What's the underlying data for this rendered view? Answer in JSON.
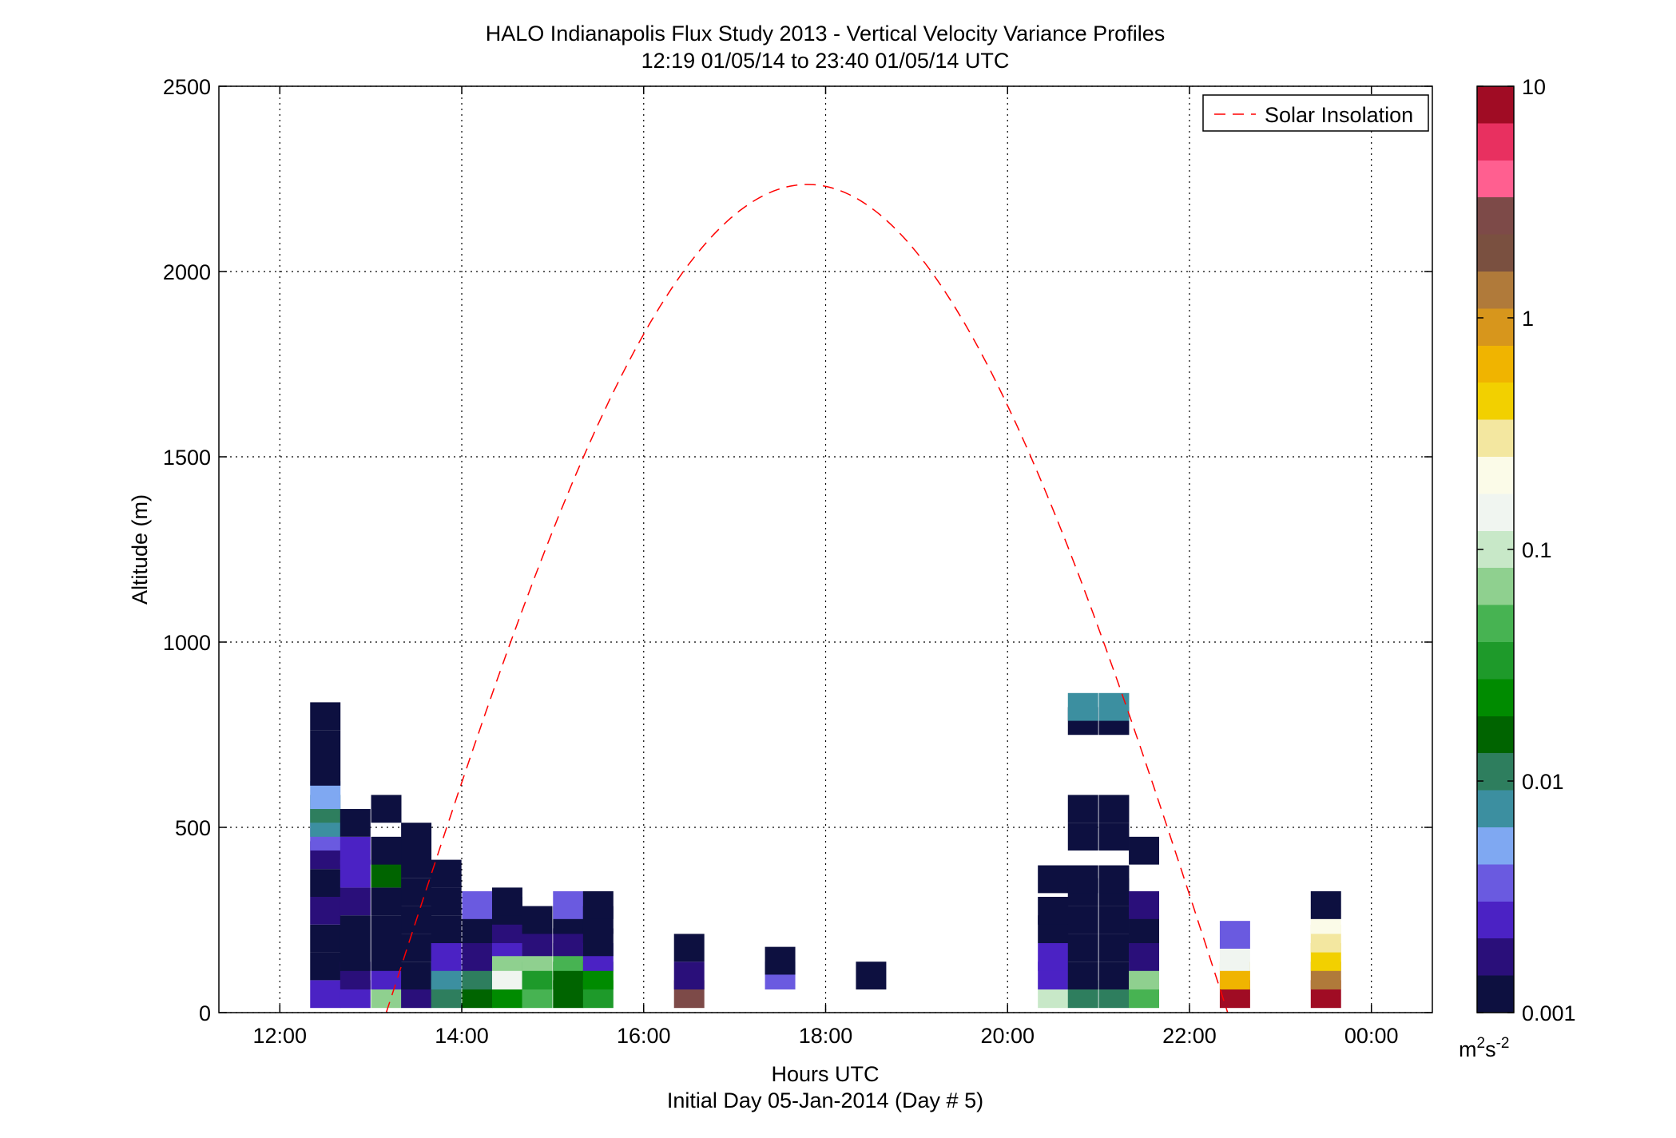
{
  "chart_data": {
    "type": "heatmap",
    "title": "HALO Indianapolis Flux Study 2013 - Vertical Velocity Variance Profiles",
    "subtitle": "12:19 01/05/14 to 23:40 01/05/14  UTC",
    "xlabel": "Hours UTC",
    "xlabel2": "Initial Day 05-Jan-2014 (Day # 5)",
    "ylabel": "Altitude (m)",
    "xlim_hours": [
      11.33,
      24.67
    ],
    "ylim": [
      0,
      2500
    ],
    "xticks": [
      {
        "value": 12,
        "label": "12:00"
      },
      {
        "value": 14,
        "label": "14:00"
      },
      {
        "value": 16,
        "label": "16:00"
      },
      {
        "value": 18,
        "label": "18:00"
      },
      {
        "value": 20,
        "label": "20:00"
      },
      {
        "value": 22,
        "label": "22:00"
      },
      {
        "value": 24,
        "label": "00:00"
      }
    ],
    "yticks": [
      {
        "value": 0,
        "label": "0"
      },
      {
        "value": 500,
        "label": "500"
      },
      {
        "value": 1000,
        "label": "1000"
      },
      {
        "value": 1500,
        "label": "1500"
      },
      {
        "value": 2000,
        "label": "2000"
      },
      {
        "value": 2500,
        "label": "2500"
      }
    ],
    "grid": true,
    "legend": {
      "placement": "top-right",
      "entries": [
        "Solar Insolation"
      ]
    },
    "colorbar": {
      "scale": "log",
      "range": [
        0.001,
        10
      ],
      "ticks": [
        {
          "value": 10,
          "label": "10"
        },
        {
          "value": 1,
          "label": "1"
        },
        {
          "value": 0.1,
          "label": "0.1"
        },
        {
          "value": 0.01,
          "label": "0.01"
        },
        {
          "value": 0.001,
          "label": "0.001"
        }
      ],
      "unit_base": "m",
      "unit_sup1": "2",
      "unit_mid": "s",
      "unit_sup2": "-2",
      "stops": [
        "#0d1040",
        "#2a0f7a",
        "#4b22c4",
        "#6a5ae0",
        "#7fa8f2",
        "#3c8fa0",
        "#2e7e5e",
        "#006400",
        "#008b00",
        "#1e9a2a",
        "#47b352",
        "#8fd08f",
        "#c8e8c8",
        "#f0f5f0",
        "#fbfbe8",
        "#f3e7a0",
        "#f2d000",
        "#f0b400",
        "#d7961c",
        "#b07a3a",
        "#7a5040",
        "#7d4a48",
        "#ff5f90",
        "#e83060",
        "#a00c24"
      ]
    },
    "solar_insolation": {
      "name": "Solar Insolation",
      "color": "#ff0000",
      "style": "dashed",
      "sunrise_hour": 13.17,
      "sunset_hour": 22.42,
      "peak_hour": 17.8,
      "peak_altitude": 2235
    },
    "cell_height_m": 75,
    "bins": [
      {
        "t": 12.5,
        "cells": [
          [
            50,
            0.003
          ],
          [
            125,
            0.001
          ],
          [
            200,
            0.001
          ],
          [
            275,
            0.002
          ],
          [
            350,
            0.001
          ],
          [
            425,
            0.0015
          ],
          [
            475,
            0.004
          ],
          [
            512,
            0.007
          ],
          [
            550,
            0.012
          ],
          [
            587,
            0.005
          ],
          [
            650,
            0.001
          ],
          [
            725,
            0.001
          ],
          [
            800,
            0.001
          ]
        ]
      },
      {
        "t": 12.83,
        "cells": [
          [
            50,
            0.003
          ],
          [
            100,
            0.0015
          ],
          [
            150,
            0.001
          ],
          [
            225,
            0.001
          ],
          [
            300,
            0.002
          ],
          [
            375,
            0.0025
          ],
          [
            437,
            0.003
          ],
          [
            512,
            0.001
          ]
        ]
      },
      {
        "t": 13.17,
        "cells": [
          [
            50,
            0.06
          ],
          [
            100,
            0.003
          ],
          [
            150,
            0.001
          ],
          [
            225,
            0.001
          ],
          [
            300,
            0.001
          ],
          [
            375,
            0.015
          ],
          [
            437,
            0.001
          ],
          [
            550,
            0.001
          ]
        ]
      },
      {
        "t": 13.5,
        "cells": [
          [
            50,
            0.0015
          ],
          [
            100,
            0.001
          ],
          [
            175,
            0.001
          ],
          [
            250,
            0.001
          ],
          [
            325,
            0.001
          ],
          [
            400,
            0.001
          ],
          [
            475,
            0.001
          ]
        ]
      },
      {
        "t": 13.83,
        "cells": [
          [
            50,
            0.01
          ],
          [
            100,
            0.008
          ],
          [
            150,
            0.0025
          ],
          [
            225,
            0.001
          ],
          [
            300,
            0.001
          ],
          [
            375,
            0.001
          ]
        ]
      },
      {
        "t": 14.17,
        "cells": [
          [
            50,
            0.015
          ],
          [
            100,
            0.013
          ],
          [
            150,
            0.0015
          ],
          [
            225,
            0.001
          ],
          [
            290,
            0.004
          ]
        ]
      },
      {
        "t": 14.5,
        "cells": [
          [
            50,
            0.02
          ],
          [
            100,
            0.15
          ],
          [
            150,
            0.06
          ],
          [
            190,
            0.0025
          ],
          [
            225,
            0.0015
          ],
          [
            275,
            0.001
          ],
          [
            300,
            0.001
          ]
        ]
      },
      {
        "t": 14.83,
        "cells": [
          [
            50,
            0.04
          ],
          [
            100,
            0.035
          ],
          [
            150,
            0.06
          ],
          [
            190,
            0.002
          ],
          [
            250,
            0.001
          ]
        ]
      },
      {
        "t": 15.17,
        "cells": [
          [
            50,
            0.015
          ],
          [
            100,
            0.015
          ],
          [
            150,
            0.05
          ],
          [
            190,
            0.0015
          ],
          [
            250,
            0.001
          ],
          [
            290,
            0.004
          ]
        ]
      },
      {
        "t": 15.5,
        "cells": [
          [
            50,
            0.03
          ],
          [
            100,
            0.02
          ],
          [
            150,
            0.003
          ],
          [
            190,
            0.001
          ],
          [
            250,
            0.001
          ],
          [
            290,
            0.001
          ]
        ]
      },
      {
        "t": 16.5,
        "cells": [
          [
            50,
            2.5
          ],
          [
            100,
            0.0015
          ],
          [
            175,
            0.001
          ]
        ]
      },
      {
        "t": 17.5,
        "cells": [
          [
            100,
            0.004
          ],
          [
            140,
            0.001
          ]
        ]
      },
      {
        "t": 18.5,
        "cells": [
          [
            100,
            0.001
          ]
        ]
      },
      {
        "t": 20.5,
        "cells": [
          [
            50,
            0.1
          ],
          [
            100,
            0.0025
          ],
          [
            150,
            0.0025
          ],
          [
            225,
            0.001
          ],
          [
            275,
            0.001
          ],
          [
            360,
            0.001
          ]
        ]
      },
      {
        "t": 20.83,
        "cells": [
          [
            50,
            0.012
          ],
          [
            100,
            0.001
          ],
          [
            175,
            0.001
          ],
          [
            250,
            0.001
          ],
          [
            325,
            0.001
          ],
          [
            360,
            0.001
          ],
          [
            475,
            0.001
          ],
          [
            550,
            0.001
          ],
          [
            787,
            0.001
          ],
          [
            825,
            0.008
          ]
        ]
      },
      {
        "t": 21.17,
        "cells": [
          [
            50,
            0.012
          ],
          [
            100,
            0.001
          ],
          [
            175,
            0.001
          ],
          [
            250,
            0.001
          ],
          [
            325,
            0.001
          ],
          [
            360,
            0.001
          ],
          [
            475,
            0.001
          ],
          [
            550,
            0.001
          ],
          [
            787,
            0.001
          ],
          [
            825,
            0.008
          ]
        ]
      },
      {
        "t": 21.5,
        "cells": [
          [
            50,
            0.04
          ],
          [
            100,
            0.08
          ],
          [
            150,
            0.002
          ],
          [
            225,
            0.001
          ],
          [
            290,
            0.0015
          ],
          [
            437,
            0.001
          ]
        ]
      },
      {
        "t": 22.5,
        "cells": [
          [
            50,
            8
          ],
          [
            100,
            0.6
          ],
          [
            150,
            0.15
          ],
          [
            210,
            0.004
          ]
        ]
      },
      {
        "t": 23.5,
        "cells": [
          [
            50,
            8
          ],
          [
            100,
            1.5
          ],
          [
            150,
            0.5
          ],
          [
            200,
            0.3
          ],
          [
            250,
            0.2
          ],
          [
            290,
            0.001
          ]
        ]
      }
    ]
  }
}
